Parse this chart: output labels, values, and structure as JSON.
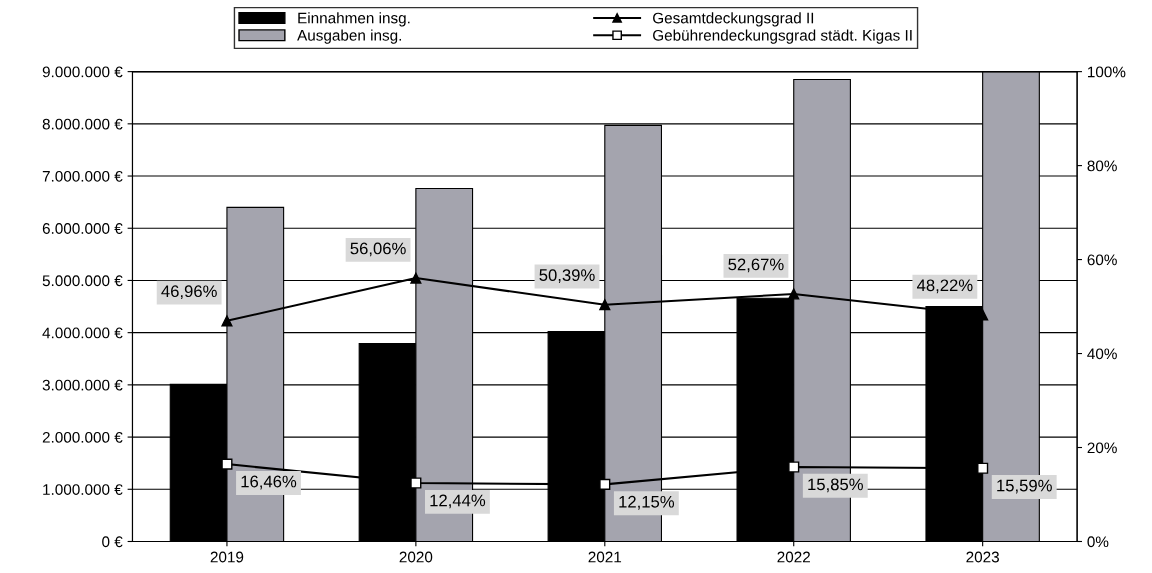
{
  "chart_data": {
    "type": "bar",
    "categories": [
      "2019",
      "2020",
      "2021",
      "2022",
      "2023"
    ],
    "series": [
      {
        "name": "Einnahmen insg.",
        "color": "#000000",
        "values": [
          3010000,
          3790000,
          4020000,
          4660000,
          4500000
        ]
      },
      {
        "name": "Ausgaben insg.",
        "color": "#a4a4ae",
        "values": [
          6400000,
          6760000,
          7970000,
          8850000,
          9000000
        ]
      },
      {
        "name": "Gesamtdeckungsgrad II",
        "type": "line",
        "axis": "y2",
        "color": "#000000",
        "marker": "triangle",
        "values": [
          46.96,
          56.06,
          50.39,
          52.67,
          48.22
        ],
        "value_labels": [
          "46,96%",
          "56,06%",
          "50,39%",
          "52,67%",
          "48,22%"
        ]
      },
      {
        "name": "Gebührendeckungsgrad städt. Kigas II",
        "type": "line",
        "axis": "y2",
        "color": "#000000",
        "marker": "square",
        "values": [
          16.46,
          12.44,
          12.15,
          15.85,
          15.59
        ],
        "value_labels": [
          "16,46%",
          "12,44%",
          "12,15%",
          "15,85%",
          "15,59%"
        ]
      }
    ],
    "ylim": [
      0,
      9000000
    ],
    "yticks": [
      {
        "value": 0,
        "label": "0 €"
      },
      {
        "value": 1000000,
        "label": "1.000.000 €"
      },
      {
        "value": 2000000,
        "label": "2.000.000 €"
      },
      {
        "value": 3000000,
        "label": "3.000.000 €"
      },
      {
        "value": 4000000,
        "label": "4.000.000 €"
      },
      {
        "value": 5000000,
        "label": "5.000.000 €"
      },
      {
        "value": 6000000,
        "label": "6.000.000 €"
      },
      {
        "value": 7000000,
        "label": "7.000.000 €"
      },
      {
        "value": 8000000,
        "label": "8.000.000 €"
      },
      {
        "value": 9000000,
        "label": "9.000.000 €"
      }
    ],
    "y2lim": [
      0,
      100
    ],
    "y2ticks": [
      {
        "value": 0,
        "label": "0%"
      },
      {
        "value": 20,
        "label": "20%"
      },
      {
        "value": 40,
        "label": "40%"
      },
      {
        "value": 60,
        "label": "60%"
      },
      {
        "value": 80,
        "label": "80%"
      },
      {
        "value": 100,
        "label": "100%"
      }
    ],
    "grid": "y",
    "legend": "top",
    "line_style": "solid"
  }
}
